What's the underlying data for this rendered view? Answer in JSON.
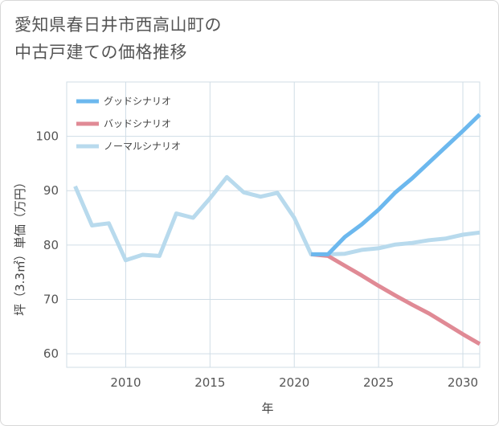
{
  "header": {
    "title_line1": "愛知県春日井市西高山町の",
    "title_line2": "中古戸建ての価格推移"
  },
  "chart_data": {
    "type": "line",
    "title": "愛知県春日井市西高山町の中古戸建ての価格推移",
    "xlabel": "年",
    "ylabel": "坪（3.3㎡）単価（万円）",
    "xlim": [
      2006.5,
      2031
    ],
    "ylim": [
      57.5,
      110
    ],
    "xticks": [
      2010,
      2015,
      2020,
      2025,
      2030
    ],
    "yticks": [
      60,
      70,
      80,
      90,
      100
    ],
    "grid": true,
    "legend_position": "top-left",
    "series": [
      {
        "name": "グッドシナリオ",
        "color": "#6cb8ee",
        "x": [
          2021,
          2022,
          2023,
          2024,
          2025,
          2026,
          2027,
          2028,
          2029,
          2030,
          2031
        ],
        "y": [
          78.3,
          78.3,
          81.5,
          83.8,
          86.5,
          89.7,
          92.3,
          95.2,
          98.1,
          101.0,
          104.0
        ]
      },
      {
        "name": "バッドシナリオ",
        "color": "#e08a95",
        "x": [
          2021,
          2022,
          2023,
          2024,
          2025,
          2026,
          2027,
          2028,
          2029,
          2030,
          2031
        ],
        "y": [
          78.3,
          78.0,
          76.2,
          74.4,
          72.5,
          70.7,
          69.0,
          67.4,
          65.5,
          63.6,
          61.8
        ]
      },
      {
        "name": "ノーマルシナリオ",
        "color": "#b8daed",
        "x": [
          2007,
          2008,
          2009,
          2010,
          2011,
          2012,
          2013,
          2014,
          2015,
          2016,
          2017,
          2018,
          2019,
          2020,
          2021,
          2022,
          2023,
          2024,
          2025,
          2026,
          2027,
          2028,
          2029,
          2030,
          2031
        ],
        "y": [
          90.8,
          83.6,
          84.0,
          77.2,
          78.2,
          78.0,
          85.8,
          85.0,
          88.6,
          92.5,
          89.7,
          88.9,
          89.6,
          85.0,
          78.3,
          78.3,
          78.4,
          79.1,
          79.4,
          80.1,
          80.4,
          80.9,
          81.2,
          81.9,
          82.3
        ]
      }
    ]
  }
}
